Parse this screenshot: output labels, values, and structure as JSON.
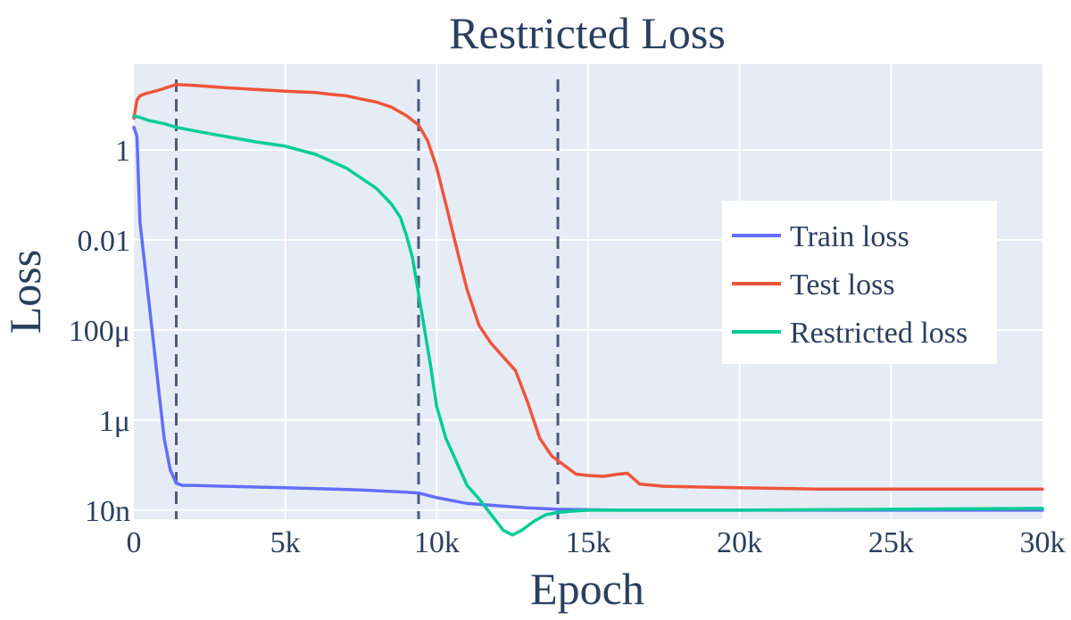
{
  "chart_data": {
    "type": "line",
    "title": "Restricted Loss",
    "xlabel": "Epoch",
    "ylabel": "Loss",
    "xlim": [
      0,
      30000
    ],
    "ylog": true,
    "ylim_log10": [
      -8.2,
      1.9
    ],
    "x_ticks": [
      {
        "value": 0,
        "label": "0"
      },
      {
        "value": 5000,
        "label": "5k"
      },
      {
        "value": 10000,
        "label": "10k"
      },
      {
        "value": 15000,
        "label": "15k"
      },
      {
        "value": 20000,
        "label": "20k"
      },
      {
        "value": 25000,
        "label": "25k"
      },
      {
        "value": 30000,
        "label": "30k"
      }
    ],
    "y_ticks": [
      {
        "log10": 0,
        "label": "1"
      },
      {
        "log10": -2,
        "label": "0.01"
      },
      {
        "log10": -4,
        "label": "100μ"
      },
      {
        "log10": -6,
        "label": "1μ"
      },
      {
        "log10": -8,
        "label": "10n"
      }
    ],
    "vlines": [
      1400,
      9400,
      14000
    ],
    "legend_position": "right",
    "series": [
      {
        "name": "Train loss",
        "color": "#636efa",
        "x": [
          0,
          100,
          200,
          400,
          600,
          800,
          1000,
          1200,
          1400,
          1600,
          2000,
          3000,
          5000,
          7500,
          9000,
          9400,
          10000,
          11000,
          12000,
          13000,
          14000,
          16000,
          20000,
          25000,
          30000
        ],
        "log10": [
          0.5,
          0.3,
          -1.6,
          -2.8,
          -4.0,
          -5.2,
          -6.4,
          -7.1,
          -7.4,
          -7.45,
          -7.45,
          -7.47,
          -7.5,
          -7.55,
          -7.6,
          -7.62,
          -7.72,
          -7.85,
          -7.9,
          -7.95,
          -7.98,
          -8.0,
          -8.0,
          -8.0,
          -8.0
        ]
      },
      {
        "name": "Test loss",
        "color": "#ef553b",
        "x": [
          0,
          100,
          200,
          400,
          800,
          1400,
          2000,
          3000,
          4000,
          5000,
          6000,
          6500,
          7000,
          7500,
          8000,
          8500,
          9000,
          9400,
          9700,
          10000,
          10300,
          10700,
          11000,
          11400,
          11800,
          12200,
          12600,
          13000,
          13400,
          13800,
          14200,
          14600,
          15000,
          15500,
          16000,
          16300,
          16700,
          17500,
          20000,
          22500,
          25000,
          30000
        ],
        "log10": [
          0.7,
          1.1,
          1.2,
          1.25,
          1.32,
          1.45,
          1.43,
          1.38,
          1.34,
          1.3,
          1.27,
          1.23,
          1.2,
          1.13,
          1.06,
          0.95,
          0.76,
          0.55,
          0.2,
          -0.4,
          -1.2,
          -2.3,
          -3.1,
          -3.9,
          -4.3,
          -4.6,
          -4.9,
          -5.6,
          -6.4,
          -6.8,
          -7.0,
          -7.2,
          -7.23,
          -7.25,
          -7.2,
          -7.18,
          -7.42,
          -7.47,
          -7.5,
          -7.53,
          -7.53,
          -7.53
        ]
      },
      {
        "name": "Restricted loss",
        "color": "#00cc96",
        "x": [
          0,
          200,
          500,
          1000,
          1400,
          2000,
          3000,
          4000,
          5000,
          6000,
          7000,
          8000,
          8500,
          8800,
          9000,
          9200,
          9400,
          9600,
          9800,
          10000,
          10300,
          10700,
          11000,
          11400,
          11800,
          12200,
          12500,
          12800,
          13200,
          13600,
          14000,
          14500,
          15000,
          16000,
          20000,
          25000,
          30000
        ],
        "log10": [
          0.75,
          0.72,
          0.65,
          0.58,
          0.5,
          0.42,
          0.3,
          0.18,
          0.08,
          -0.1,
          -0.4,
          -0.85,
          -1.2,
          -1.5,
          -1.9,
          -2.4,
          -3.2,
          -4.0,
          -4.8,
          -5.7,
          -6.4,
          -7.0,
          -7.45,
          -7.75,
          -8.1,
          -8.45,
          -8.55,
          -8.45,
          -8.25,
          -8.1,
          -8.05,
          -8.02,
          -8.0,
          -8.0,
          -8.0,
          -7.98,
          -7.96
        ]
      }
    ]
  }
}
